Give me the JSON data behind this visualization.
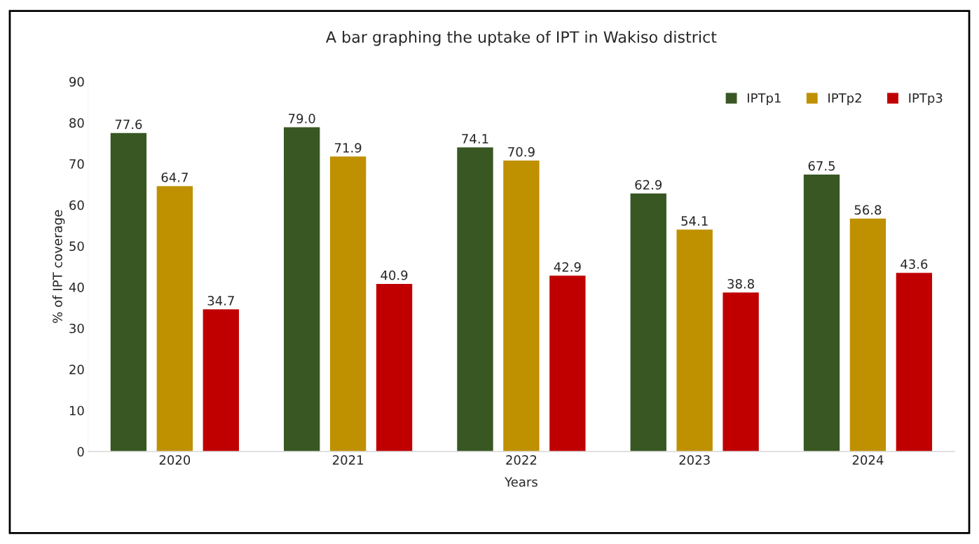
{
  "chart_data": {
    "type": "bar",
    "title": "A bar graphing the uptake of IPT in Wakiso district",
    "xlabel": "Years",
    "ylabel": "% of IPT coverage",
    "categories": [
      "2020",
      "2021",
      "2022",
      "2023",
      "2024"
    ],
    "series": [
      {
        "name": "IPTp1",
        "color": "#385723",
        "values": [
          77.6,
          79.0,
          74.1,
          62.9,
          67.5
        ],
        "value_labels": [
          "77.6",
          "79.0",
          "74.1",
          "62.9",
          "67.5"
        ]
      },
      {
        "name": "IPTp2",
        "color": "#bf9000",
        "values": [
          64.7,
          71.9,
          70.9,
          54.1,
          56.8
        ],
        "value_labels": [
          "64.7",
          "71.9",
          "70.9",
          "54.1",
          "56.8"
        ]
      },
      {
        "name": "IPTp3",
        "color": "#c00000",
        "values": [
          34.7,
          40.9,
          42.9,
          38.8,
          43.6
        ],
        "value_labels": [
          "34.7",
          "40.9",
          "42.9",
          "38.8",
          "43.6"
        ]
      }
    ],
    "ylim": [
      0,
      90
    ],
    "yticks": [
      0,
      10,
      20,
      30,
      40,
      50,
      60,
      70,
      80,
      90
    ],
    "grid": false,
    "legend": "top right"
  }
}
